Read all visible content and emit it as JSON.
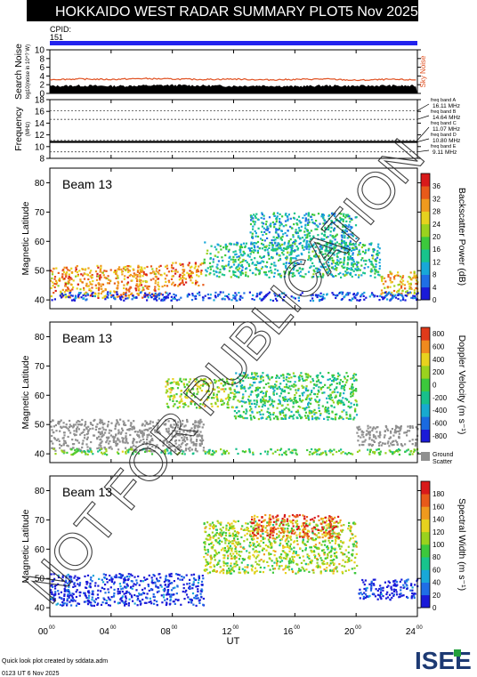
{
  "header": {
    "title": "HOKKAIDO WEST RADAR SUMMARY PLOT",
    "date": "5 Nov 2025",
    "cpid_label": "CPID:",
    "cpid_value": "151"
  },
  "watermark": "NOT FOR PUBLICATION",
  "footer": {
    "credit": "Quick look plot created by sddata.adm",
    "timestamp": "0123 UT  6 Nov 2025",
    "logo": "ISEE"
  },
  "colors": {
    "cpid_bar": "#2222ee",
    "sky_noise": "#e05020",
    "ground_scatter": "#909090"
  },
  "chart_data": [
    {
      "type": "line",
      "panel": "noise",
      "ylabel": "Search Noise",
      "ylabel_units": "log10(noise in 10^? W)",
      "yticks": [
        0,
        2,
        4,
        6,
        8,
        10
      ],
      "ylim": [
        0,
        10
      ],
      "right_label": "Sky Noise",
      "series": [
        {
          "name": "Sky Noise",
          "x": [
            0,
            2,
            4,
            6,
            8,
            10,
            12,
            14,
            16,
            18,
            20,
            22,
            24
          ],
          "values": [
            3.2,
            3.3,
            3.2,
            3.4,
            3.3,
            3.2,
            3.3,
            3.1,
            3.2,
            3.3,
            3.0,
            3.2,
            3.1
          ]
        },
        {
          "name": "Search Noise",
          "x": [
            0,
            2,
            4,
            6,
            8,
            10,
            12,
            14,
            16,
            18,
            20,
            22,
            24
          ],
          "values": [
            1.7,
            1.8,
            1.7,
            1.8,
            1.9,
            1.8,
            1.7,
            1.8,
            1.6,
            1.8,
            1.7,
            1.8,
            1.7
          ]
        }
      ]
    },
    {
      "type": "line",
      "panel": "frequency",
      "ylabel": "Frequency",
      "ylabel_units": "(MHz)",
      "yticks": [
        8,
        10,
        12,
        14,
        16,
        18
      ],
      "ylim": [
        8,
        18
      ],
      "bands": [
        {
          "label": "freq band A",
          "freq": "16.11 MHz",
          "value": 16.11
        },
        {
          "label": "freq band B",
          "freq": "14.64 MHz",
          "value": 14.64
        },
        {
          "label": "freq band C",
          "freq": "11.07 MHz",
          "value": 11.07
        },
        {
          "label": "freq band D",
          "freq": "10.80 MHz",
          "value": 10.8
        },
        {
          "label": "freq band E",
          "freq": "9.11 MHz",
          "value": 9.11
        }
      ],
      "series": [
        {
          "name": "operating frequency",
          "x": [
            0,
            24
          ],
          "values": [
            10.8,
            10.8
          ]
        }
      ]
    },
    {
      "type": "heatmap",
      "panel": "power",
      "beam_label": "Beam 13",
      "ylabel": "Magnetic Latitude",
      "yticks": [
        40,
        50,
        60,
        70,
        80
      ],
      "ylim": [
        37,
        85
      ],
      "colorbar_label": "Backscatter Power (dB)",
      "colorbar_ticks": [
        "0",
        "4",
        "8",
        "12",
        "16",
        "20",
        "24",
        "28",
        "32",
        "36"
      ],
      "colorbar_colors": [
        "#1a1ad8",
        "#1f6ee6",
        "#18a8d8",
        "#18c48c",
        "#3cc83c",
        "#9ad21e",
        "#e6d21e",
        "#f09a1e",
        "#e85a1a",
        "#d81a1a"
      ],
      "regions": [
        {
          "t0": 0,
          "t1": 7.5,
          "lat0": 41,
          "lat1": 52,
          "level": 0.75
        },
        {
          "t0": 7.5,
          "t1": 10,
          "lat0": 45,
          "lat1": 53,
          "level": 0.8
        },
        {
          "t0": 10,
          "t1": 21.5,
          "lat0": 48,
          "lat1": 60,
          "level": 0.35
        },
        {
          "t0": 13,
          "t1": 20,
          "lat0": 57,
          "lat1": 70,
          "level": 0.3
        },
        {
          "t0": 21.5,
          "t1": 24,
          "lat0": 42,
          "lat1": 50,
          "level": 0.7
        },
        {
          "t0": 0,
          "t1": 24,
          "lat0": 40,
          "lat1": 43,
          "level": 0.1
        }
      ]
    },
    {
      "type": "heatmap",
      "panel": "velocity",
      "beam_label": "Beam 13",
      "ylabel": "Magnetic Latitude",
      "yticks": [
        40,
        50,
        60,
        70,
        80
      ],
      "ylim": [
        37,
        85
      ],
      "colorbar_label": "Doppler Velocity (m s⁻¹)",
      "colorbar_ticks": [
        "800",
        "600",
        "400",
        "200",
        "0",
        "-200",
        "-400",
        "-600",
        "-800"
      ],
      "colorbar_colors": [
        "#1a1ad8",
        "#1a6ae0",
        "#18aad0",
        "#18c08a",
        "#3cc83c",
        "#9ad21e",
        "#e8d21e",
        "#f08a1e",
        "#e03a1a"
      ],
      "ground_scatter_label": [
        "Ground",
        "Scatter"
      ],
      "regions": [
        {
          "t0": 0,
          "t1": 10,
          "lat0": 41,
          "lat1": 52,
          "level": "gs"
        },
        {
          "t0": 7.5,
          "t1": 12,
          "lat0": 56,
          "lat1": 66,
          "level": 0.62
        },
        {
          "t0": 12,
          "t1": 20,
          "lat0": 52,
          "lat1": 68,
          "level": 0.45
        },
        {
          "t0": 20,
          "t1": 24,
          "lat0": 43,
          "lat1": 50,
          "level": "gs"
        },
        {
          "t0": 0,
          "t1": 24,
          "lat0": 40,
          "lat1": 42,
          "level": 0.5
        }
      ]
    },
    {
      "type": "heatmap",
      "panel": "width",
      "beam_label": "Beam 13",
      "ylabel": "Magnetic Latitude",
      "yticks": [
        40,
        50,
        60,
        70,
        80
      ],
      "ylim": [
        37,
        85
      ],
      "colorbar_label": "Spectral Width (m s⁻¹)",
      "colorbar_ticks": [
        "0",
        "20",
        "40",
        "60",
        "80",
        "100",
        "120",
        "140",
        "160",
        "180"
      ],
      "colorbar_colors": [
        "#1a1ad8",
        "#1f6ee6",
        "#18a8d8",
        "#18c48c",
        "#3cc83c",
        "#9ad21e",
        "#e6d21e",
        "#f09a1e",
        "#e85a1a",
        "#d81a1a"
      ],
      "regions": [
        {
          "t0": 0,
          "t1": 10,
          "lat0": 41,
          "lat1": 52,
          "level": 0.05
        },
        {
          "t0": 10,
          "t1": 20,
          "lat0": 52,
          "lat1": 70,
          "level": 0.55
        },
        {
          "t0": 13,
          "t1": 19,
          "lat0": 64,
          "lat1": 72,
          "level": 0.85
        },
        {
          "t0": 20,
          "t1": 24,
          "lat0": 43,
          "lat1": 50,
          "level": 0.05
        }
      ]
    }
  ],
  "x_axis": {
    "label": "UT",
    "ticks": [
      {
        "hour": "00",
        "min": "00"
      },
      {
        "hour": "04",
        "min": "00"
      },
      {
        "hour": "08",
        "min": "00"
      },
      {
        "hour": "12",
        "min": "00"
      },
      {
        "hour": "16",
        "min": "00"
      },
      {
        "hour": "20",
        "min": "00"
      },
      {
        "hour": "24",
        "min": "00"
      }
    ],
    "range": [
      0,
      24
    ]
  }
}
